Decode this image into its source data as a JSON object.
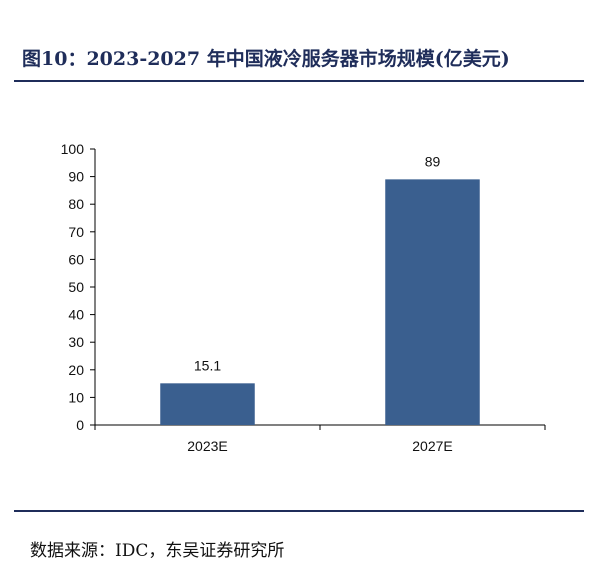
{
  "figure": {
    "title": "图10：2023-2027 年中国液冷服务器市场规模(亿美元)",
    "source": "数据来源：IDC，东吴证券研究所"
  },
  "colors": {
    "bar": "#3a5f8f",
    "title": "#1f2d5a",
    "axis": "#000000"
  },
  "chart_data": {
    "type": "bar",
    "title": "图10：2023-2027 年中国液冷服务器市场规模(亿美元)",
    "categories": [
      "2023E",
      "2027E"
    ],
    "values": [
      15.1,
      89
    ],
    "data_labels": [
      "15.1",
      "89"
    ],
    "xlabel": "",
    "ylabel": "",
    "ylim": [
      0,
      100
    ],
    "yticks": [
      0,
      10,
      20,
      30,
      40,
      50,
      60,
      70,
      80,
      90,
      100
    ],
    "grid": false,
    "legend": "none"
  }
}
